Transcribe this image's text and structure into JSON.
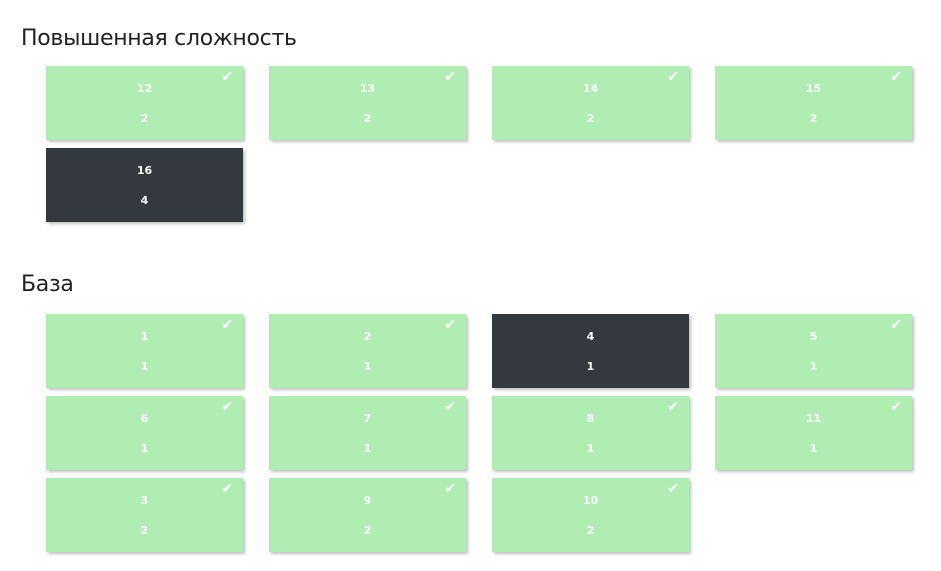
{
  "sections": [
    {
      "title": "Повышенная сложность",
      "cards": [
        {
          "number": "12",
          "points": "2",
          "done": true
        },
        {
          "number": "13",
          "points": "2",
          "done": true
        },
        {
          "number": "14",
          "points": "2",
          "done": true
        },
        {
          "number": "15",
          "points": "2",
          "done": true
        },
        {
          "number": "16",
          "points": "4",
          "done": false
        }
      ]
    },
    {
      "title": "База",
      "cards": [
        {
          "number": "1",
          "points": "1",
          "done": true
        },
        {
          "number": "2",
          "points": "1",
          "done": true
        },
        {
          "number": "4",
          "points": "1",
          "done": false
        },
        {
          "number": "5",
          "points": "1",
          "done": true
        },
        {
          "number": "6",
          "points": "1",
          "done": true
        },
        {
          "number": "7",
          "points": "1",
          "done": true
        },
        {
          "number": "8",
          "points": "1",
          "done": true
        },
        {
          "number": "11",
          "points": "1",
          "done": true
        },
        {
          "number": "3",
          "points": "2",
          "done": true
        },
        {
          "number": "9",
          "points": "2",
          "done": true
        },
        {
          "number": "10",
          "points": "2",
          "done": true
        }
      ]
    }
  ],
  "colors": {
    "done": "#b0edb2",
    "pending": "#343940"
  },
  "icons": {
    "done": "check-icon"
  }
}
